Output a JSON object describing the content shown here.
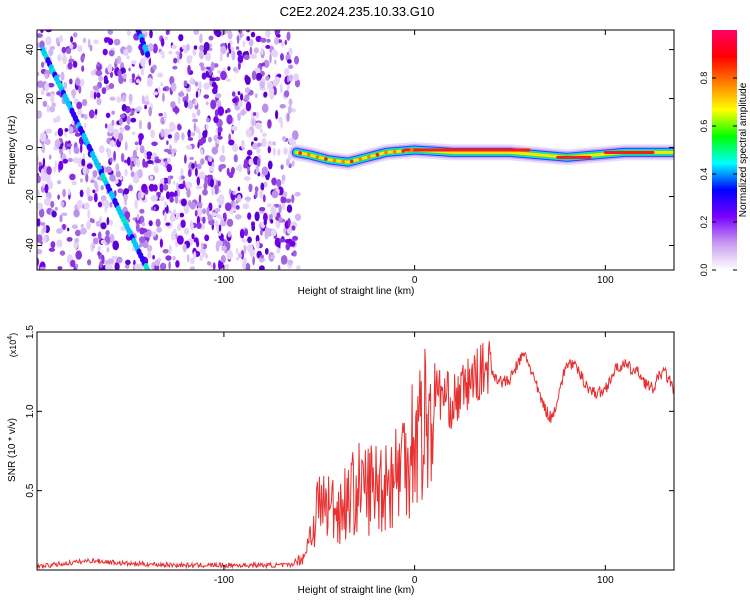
{
  "title": "C2E2.2024.235.10.33.G10",
  "chart_data": [
    {
      "type": "heatmap",
      "xlabel": "Height of straight line (km)",
      "ylabel": "Frequency (Hz)",
      "xlim": [
        -198,
        136
      ],
      "ylim": [
        -50,
        48
      ],
      "xticks": [
        -100,
        0,
        100
      ],
      "yticks": [
        -40,
        -20,
        0,
        20,
        40
      ],
      "noise_region_x": [
        -198,
        -62
      ],
      "track_centerline": [
        {
          "x": -62,
          "y": -2
        },
        {
          "x": -55,
          "y": -3
        },
        {
          "x": -45,
          "y": -5
        },
        {
          "x": -35,
          "y": -6
        },
        {
          "x": -25,
          "y": -4
        },
        {
          "x": -15,
          "y": -2
        },
        {
          "x": 0,
          "y": -1
        },
        {
          "x": 20,
          "y": -2
        },
        {
          "x": 50,
          "y": -2
        },
        {
          "x": 80,
          "y": -4
        },
        {
          "x": 95,
          "y": -3
        },
        {
          "x": 110,
          "y": -2
        },
        {
          "x": 136,
          "y": -2
        }
      ],
      "diagonal_streaks": [
        {
          "x0": -195,
          "y0": 40,
          "x1": -140,
          "y1": -50
        },
        {
          "x0": -145,
          "y0": 48,
          "x1": -140,
          "y1": 38
        }
      ],
      "colorbar": {
        "label": "Normalized spectral amplitude",
        "range": [
          0,
          1
        ],
        "ticks": [
          "0.0",
          "0.2",
          "0.4",
          "0.6",
          "0.8"
        ],
        "colors": [
          "#ffffff",
          "#c99cf0",
          "#7a00ff",
          "#0000ff",
          "#00ffff",
          "#00ff00",
          "#ffff00",
          "#ff8000",
          "#ff0000",
          "#ff0066"
        ]
      }
    },
    {
      "type": "line",
      "xlabel": "Height of straight line (km)",
      "ylabel": "SNR (10 * v/v)",
      "multiplier_label": "(x10",
      "multiplier_exp": "4",
      "xlim": [
        -198,
        136
      ],
      "ylim": [
        0,
        1.5
      ],
      "xticks": [
        -100,
        0,
        100
      ],
      "yticks": [
        "0.5",
        "1.0",
        "1.5"
      ],
      "color": "#e83030",
      "series": [
        {
          "name": "SNR",
          "x": [
            -198,
            -170,
            -150,
            -120,
            -90,
            -65,
            -58,
            -50,
            -40,
            -30,
            -20,
            -10,
            -5,
            0,
            5,
            10,
            20,
            30,
            40,
            50,
            58,
            65,
            72,
            80,
            90,
            100,
            110,
            118,
            125,
            130,
            136
          ],
          "y": [
            0.02,
            0.06,
            0.04,
            0.03,
            0.03,
            0.03,
            0.1,
            0.5,
            0.45,
            0.6,
            0.62,
            0.7,
            0.85,
            1.0,
            1.1,
            1.15,
            1.05,
            1.2,
            1.3,
            1.2,
            1.3,
            1.15,
            1.0,
            1.25,
            1.2,
            1.15,
            1.25,
            1.3,
            1.15,
            1.2,
            1.1
          ]
        }
      ]
    }
  ]
}
